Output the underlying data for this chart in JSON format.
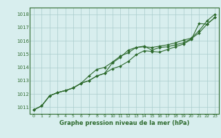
{
  "x": [
    0,
    1,
    2,
    3,
    4,
    5,
    6,
    7,
    8,
    9,
    10,
    11,
    12,
    13,
    14,
    15,
    16,
    17,
    18,
    19,
    20,
    21,
    22,
    23
  ],
  "line1": [
    1010.8,
    1011.1,
    1011.85,
    1012.1,
    1012.25,
    1012.45,
    1012.8,
    1013.0,
    1013.35,
    1013.55,
    1013.9,
    1014.1,
    1014.45,
    1014.95,
    1015.25,
    1015.2,
    1015.15,
    1015.35,
    1015.55,
    1015.75,
    1016.1,
    1017.3,
    1017.25,
    1017.75
  ],
  "line2": [
    1010.8,
    1011.1,
    1011.85,
    1012.1,
    1012.25,
    1012.45,
    1012.8,
    1013.35,
    1013.85,
    1014.0,
    1014.4,
    1014.85,
    1015.1,
    1015.5,
    1015.6,
    1015.3,
    1015.5,
    1015.55,
    1015.7,
    1015.85,
    1016.15,
    1016.6,
    1017.25,
    1017.75
  ],
  "line3": [
    1010.8,
    1011.1,
    1011.85,
    1012.1,
    1012.25,
    1012.45,
    1012.8,
    1013.0,
    1013.35,
    1013.55,
    1014.35,
    1014.75,
    1015.3,
    1015.5,
    1015.55,
    1015.5,
    1015.6,
    1015.7,
    1015.85,
    1016.05,
    1016.2,
    1016.75,
    1017.5,
    1018.0
  ],
  "line_color": "#2d6a2d",
  "bg_color": "#d8eeee",
  "grid_color": "#aacccc",
  "text_color": "#2d6a2d",
  "title": "Graphe pression niveau de la mer (hPa)",
  "xlabel_ticks": [
    0,
    1,
    2,
    3,
    4,
    5,
    6,
    7,
    8,
    9,
    10,
    11,
    12,
    13,
    14,
    15,
    16,
    17,
    18,
    19,
    20,
    21,
    22,
    23
  ],
  "ylim": [
    1010.5,
    1018.5
  ],
  "yticks": [
    1011,
    1012,
    1013,
    1014,
    1015,
    1016,
    1017,
    1018
  ]
}
